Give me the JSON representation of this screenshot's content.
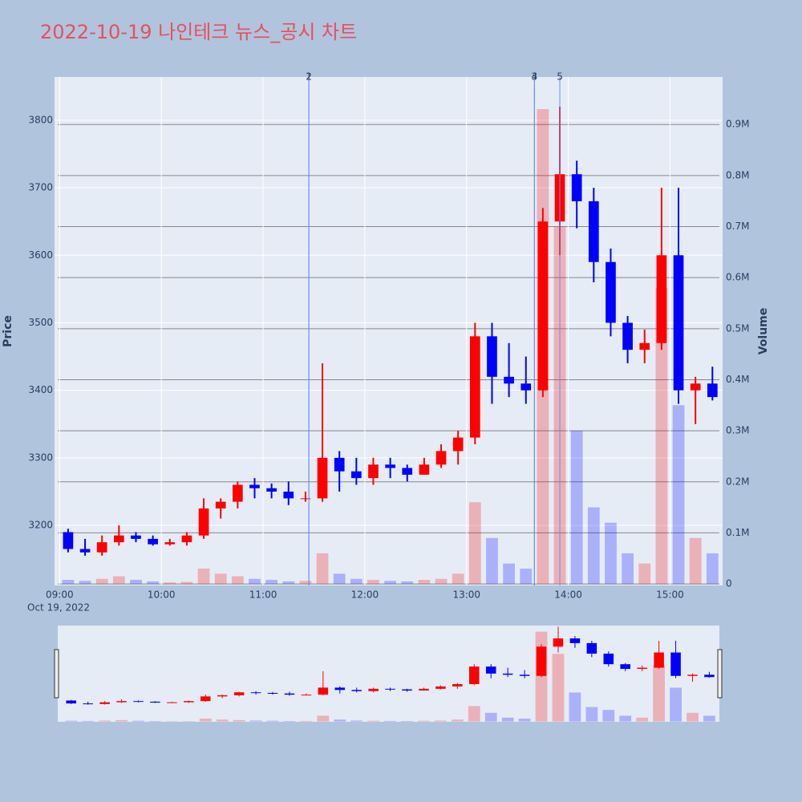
{
  "chart_data": {
    "type": "candlestick",
    "title": "2022-10-19 나인테크 뉴스_공시 차트",
    "y_label": "Price",
    "y2_label": "Volume",
    "x": [
      "2022-10-19 09:00",
      "2022-10-19 09:10",
      "2022-10-19 09:20",
      "2022-10-19 09:30",
      "2022-10-19 09:40",
      "2022-10-19 09:50",
      "2022-10-19 10:00",
      "2022-10-19 10:10",
      "2022-10-19 10:20",
      "2022-10-19 10:30",
      "2022-10-19 10:40",
      "2022-10-19 10:50",
      "2022-10-19 11:00",
      "2022-10-19 11:10",
      "2022-10-19 11:20",
      "2022-10-19 11:30",
      "2022-10-19 11:40",
      "2022-10-19 11:50",
      "2022-10-19 12:00",
      "2022-10-19 12:10",
      "2022-10-19 12:20",
      "2022-10-19 12:30",
      "2022-10-19 12:40",
      "2022-10-19 12:50",
      "2022-10-19 13:00",
      "2022-10-19 13:10",
      "2022-10-19 13:20",
      "2022-10-19 13:30",
      "2022-10-19 13:40",
      "2022-10-19 13:50",
      "2022-10-19 14:00",
      "2022-10-19 14:10",
      "2022-10-19 14:20",
      "2022-10-19 14:30",
      "2022-10-19 14:40",
      "2022-10-19 14:50",
      "2022-10-19 15:00",
      "2022-10-19 15:10",
      "2022-10-19 15:20"
    ],
    "open": [
      3190,
      3165,
      3160,
      3175,
      3185,
      3180,
      3172,
      3175,
      3185,
      3225,
      3235,
      3260,
      3255,
      3250,
      3240,
      3240,
      3300,
      3280,
      3270,
      3290,
      3285,
      3275,
      3290,
      3310,
      3330,
      3480,
      3420,
      3410,
      3400,
      3650,
      3720,
      3680,
      3590,
      3500,
      3460,
      3470,
      3600,
      3400,
      3410
    ],
    "high": [
      3195,
      3180,
      3185,
      3200,
      3190,
      3185,
      3180,
      3190,
      3240,
      3240,
      3265,
      3270,
      3262,
      3265,
      3250,
      3440,
      3310,
      3300,
      3300,
      3300,
      3290,
      3300,
      3320,
      3340,
      3500,
      3500,
      3470,
      3450,
      3670,
      3820,
      3740,
      3700,
      3610,
      3510,
      3490,
      3700,
      3700,
      3420,
      3435
    ],
    "low": [
      3160,
      3155,
      3155,
      3170,
      3175,
      3170,
      3170,
      3170,
      3180,
      3210,
      3225,
      3240,
      3240,
      3230,
      3235,
      3235,
      3250,
      3260,
      3260,
      3270,
      3265,
      3275,
      3285,
      3290,
      3320,
      3380,
      3390,
      3380,
      3390,
      3600,
      3640,
      3560,
      3480,
      3440,
      3440,
      3460,
      3380,
      3350,
      3385
    ],
    "close": [
      3165,
      3160,
      3175,
      3185,
      3180,
      3172,
      3175,
      3185,
      3225,
      3235,
      3260,
      3255,
      3250,
      3240,
      3240,
      3300,
      3280,
      3270,
      3290,
      3285,
      3275,
      3290,
      3310,
      3330,
      3480,
      3420,
      3410,
      3400,
      3650,
      3720,
      3680,
      3590,
      3500,
      3460,
      3470,
      3600,
      3400,
      3410,
      3390
    ],
    "volume": [
      8000,
      6000,
      10000,
      15000,
      8000,
      5000,
      3000,
      4000,
      30000,
      20000,
      15000,
      10000,
      8000,
      5000,
      6000,
      60000,
      20000,
      10000,
      8000,
      6000,
      5000,
      8000,
      10000,
      20000,
      160000,
      90000,
      40000,
      30000,
      930000,
      700000,
      300000,
      150000,
      120000,
      60000,
      40000,
      580000,
      350000,
      90000,
      60000
    ],
    "increasing_color": "#ff0000",
    "decreasing_color": "#0000ff",
    "xlim": [
      "2022-10-19 08:57",
      "2022-10-19 15:31"
    ],
    "xticks": [
      {
        "value": "2022-10-19 09:00",
        "label": "09:00"
      },
      {
        "value": "2022-10-19 10:00",
        "label": "10:00"
      },
      {
        "value": "2022-10-19 11:00",
        "label": "11:00"
      },
      {
        "value": "2022-10-19 12:00",
        "label": "12:00"
      },
      {
        "value": "2022-10-19 13:00",
        "label": "13:00"
      },
      {
        "value": "2022-10-19 14:00",
        "label": "14:00"
      },
      {
        "value": "2022-10-19 15:00",
        "label": "15:00"
      }
    ],
    "x_date_label": "Oct 19, 2022",
    "ylim": [
      3111,
      3864
    ],
    "yticks": [
      3200,
      3300,
      3400,
      3500,
      3600,
      3700,
      3800
    ],
    "y2lim": [
      -3000,
      993000
    ],
    "y2ticks": [
      0,
      {
        "value": 100000,
        "label": "0.1M"
      },
      {
        "value": 200000,
        "label": "0.2M"
      },
      {
        "value": 300000,
        "label": "0.3M"
      },
      {
        "value": 400000,
        "label": "0.4M"
      },
      {
        "value": 500000,
        "label": "0.5M"
      },
      {
        "value": 600000,
        "label": "0.6M"
      },
      {
        "value": 700000,
        "label": "0.7M"
      },
      {
        "value": 800000,
        "label": "0.8M"
      },
      {
        "value": 900000,
        "label": "0.9M"
      }
    ],
    "events": [
      {
        "time": "2022-10-19 11:27",
        "label": "1"
      },
      {
        "time": "2022-10-19 11:27",
        "label": "2"
      },
      {
        "time": "2022-10-19 13:40",
        "label": "3"
      },
      {
        "time": "2022-10-19 13:40",
        "label": "4"
      },
      {
        "time": "2022-10-19 13:55",
        "label": "5"
      }
    ],
    "grid": true,
    "rangeslider": true
  }
}
